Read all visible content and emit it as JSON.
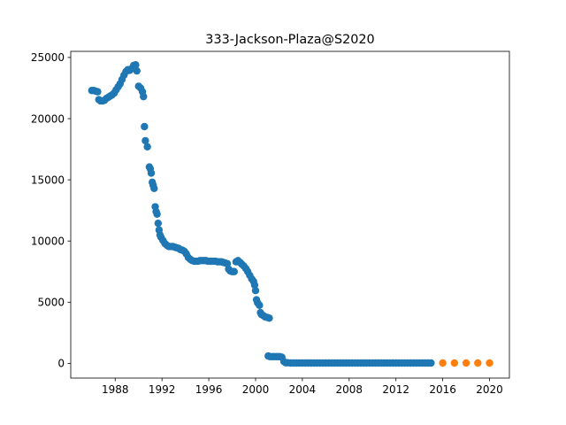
{
  "chart_data": {
    "type": "scatter",
    "title": "333-Jackson-Plaza@S2020",
    "xlabel": "",
    "ylabel": "",
    "xlim": [
      1984.2,
      2021.7
    ],
    "ylim": [
      -1200,
      25500
    ],
    "x_ticks": [
      1988,
      1992,
      1996,
      2000,
      2004,
      2008,
      2012,
      2016,
      2020
    ],
    "y_ticks": [
      0,
      5000,
      10000,
      15000,
      20000,
      25000
    ],
    "grid": false,
    "legend": "none",
    "series": [
      {
        "color": "#1f77b4",
        "points": [
          [
            1986.0,
            22300
          ],
          [
            1986.17,
            22300
          ],
          [
            1986.33,
            22250
          ],
          [
            1986.5,
            22200
          ],
          [
            1986.6,
            21550
          ],
          [
            1986.75,
            21450
          ],
          [
            1986.92,
            21450
          ],
          [
            1987.08,
            21500
          ],
          [
            1987.25,
            21650
          ],
          [
            1987.42,
            21750
          ],
          [
            1987.58,
            21850
          ],
          [
            1987.75,
            21950
          ],
          [
            1987.92,
            22100
          ],
          [
            1988.08,
            22350
          ],
          [
            1988.25,
            22600
          ],
          [
            1988.42,
            22850
          ],
          [
            1988.58,
            23200
          ],
          [
            1988.75,
            23550
          ],
          [
            1988.92,
            23850
          ],
          [
            1989.08,
            24000
          ],
          [
            1989.25,
            23950
          ],
          [
            1989.42,
            24100
          ],
          [
            1989.58,
            24350
          ],
          [
            1989.75,
            24400
          ],
          [
            1989.85,
            23900
          ],
          [
            1990.0,
            22650
          ],
          [
            1990.17,
            22500
          ],
          [
            1990.33,
            22200
          ],
          [
            1990.42,
            21800
          ],
          [
            1990.5,
            19350
          ],
          [
            1990.58,
            18200
          ],
          [
            1990.75,
            17700
          ],
          [
            1990.92,
            16050
          ],
          [
            1991.0,
            15900
          ],
          [
            1991.08,
            15550
          ],
          [
            1991.17,
            14800
          ],
          [
            1991.25,
            14550
          ],
          [
            1991.33,
            14300
          ],
          [
            1991.42,
            12800
          ],
          [
            1991.5,
            12400
          ],
          [
            1991.58,
            12200
          ],
          [
            1991.67,
            11450
          ],
          [
            1991.75,
            10900
          ],
          [
            1991.83,
            10500
          ],
          [
            1991.92,
            10300
          ],
          [
            1992.08,
            10050
          ],
          [
            1992.25,
            9800
          ],
          [
            1992.42,
            9650
          ],
          [
            1992.58,
            9550
          ],
          [
            1992.75,
            9550
          ],
          [
            1992.92,
            9550
          ],
          [
            1993.08,
            9500
          ],
          [
            1993.25,
            9450
          ],
          [
            1993.42,
            9400
          ],
          [
            1993.58,
            9300
          ],
          [
            1993.75,
            9250
          ],
          [
            1993.92,
            9150
          ],
          [
            1994.08,
            8950
          ],
          [
            1994.25,
            8650
          ],
          [
            1994.42,
            8500
          ],
          [
            1994.58,
            8400
          ],
          [
            1994.75,
            8350
          ],
          [
            1994.92,
            8350
          ],
          [
            1995.08,
            8350
          ],
          [
            1995.25,
            8400
          ],
          [
            1995.42,
            8400
          ],
          [
            1995.58,
            8400
          ],
          [
            1995.75,
            8400
          ],
          [
            1995.92,
            8350
          ],
          [
            1996.08,
            8350
          ],
          [
            1996.25,
            8350
          ],
          [
            1996.42,
            8350
          ],
          [
            1996.58,
            8350
          ],
          [
            1996.75,
            8300
          ],
          [
            1996.92,
            8300
          ],
          [
            1997.08,
            8300
          ],
          [
            1997.25,
            8250
          ],
          [
            1997.42,
            8200
          ],
          [
            1997.58,
            8150
          ],
          [
            1997.7,
            7700
          ],
          [
            1997.83,
            7550
          ],
          [
            1998.0,
            7500
          ],
          [
            1998.17,
            7500
          ],
          [
            1998.33,
            8300
          ],
          [
            1998.5,
            8400
          ],
          [
            1998.67,
            8250
          ],
          [
            1998.83,
            8100
          ],
          [
            1999.0,
            7950
          ],
          [
            1999.17,
            7750
          ],
          [
            1999.33,
            7500
          ],
          [
            1999.5,
            7200
          ],
          [
            1999.67,
            6900
          ],
          [
            1999.83,
            6700
          ],
          [
            1999.92,
            6400
          ],
          [
            2000.0,
            5950
          ],
          [
            2000.08,
            5200
          ],
          [
            2000.17,
            4950
          ],
          [
            2000.33,
            4750
          ],
          [
            2000.42,
            4150
          ],
          [
            2000.5,
            4000
          ],
          [
            2000.67,
            3900
          ],
          [
            2000.83,
            3800
          ],
          [
            2001.0,
            3750
          ],
          [
            2001.17,
            3700
          ],
          [
            2001.08,
            600
          ],
          [
            2001.25,
            550
          ],
          [
            2001.42,
            550
          ],
          [
            2001.58,
            550
          ],
          [
            2001.75,
            550
          ],
          [
            2001.92,
            550
          ],
          [
            2002.08,
            550
          ],
          [
            2002.25,
            500
          ],
          [
            2002.42,
            150
          ],
          [
            2002.58,
            50
          ],
          [
            2002.75,
            50
          ],
          [
            2003.0,
            30
          ],
          [
            2003.25,
            30
          ],
          [
            2003.5,
            30
          ],
          [
            2003.75,
            30
          ],
          [
            2004.0,
            30
          ],
          [
            2004.25,
            30
          ],
          [
            2004.5,
            30
          ],
          [
            2004.75,
            30
          ],
          [
            2005.0,
            30
          ],
          [
            2005.25,
            30
          ],
          [
            2005.5,
            30
          ],
          [
            2005.75,
            30
          ],
          [
            2006.0,
            30
          ],
          [
            2006.25,
            30
          ],
          [
            2006.5,
            30
          ],
          [
            2006.75,
            30
          ],
          [
            2007.0,
            30
          ],
          [
            2007.25,
            30
          ],
          [
            2007.5,
            30
          ],
          [
            2007.75,
            30
          ],
          [
            2008.0,
            30
          ],
          [
            2008.25,
            30
          ],
          [
            2008.5,
            30
          ],
          [
            2008.75,
            30
          ],
          [
            2009.0,
            30
          ],
          [
            2009.25,
            30
          ],
          [
            2009.5,
            30
          ],
          [
            2009.75,
            30
          ],
          [
            2010.0,
            30
          ],
          [
            2010.25,
            30
          ],
          [
            2010.5,
            30
          ],
          [
            2010.75,
            30
          ],
          [
            2011.0,
            30
          ],
          [
            2011.25,
            30
          ],
          [
            2011.5,
            30
          ],
          [
            2011.75,
            30
          ],
          [
            2012.0,
            30
          ],
          [
            2012.25,
            30
          ],
          [
            2012.5,
            30
          ],
          [
            2012.75,
            30
          ],
          [
            2013.0,
            30
          ],
          [
            2013.25,
            30
          ],
          [
            2013.5,
            30
          ],
          [
            2013.75,
            30
          ],
          [
            2014.0,
            30
          ],
          [
            2014.25,
            30
          ],
          [
            2014.5,
            30
          ],
          [
            2014.75,
            30
          ],
          [
            2015.0,
            30
          ]
        ]
      },
      {
        "color": "#ff7f0e",
        "points": [
          [
            2016.0,
            30
          ],
          [
            2017.0,
            30
          ],
          [
            2018.0,
            30
          ],
          [
            2019.0,
            30
          ],
          [
            2020.0,
            30
          ]
        ]
      }
    ]
  }
}
